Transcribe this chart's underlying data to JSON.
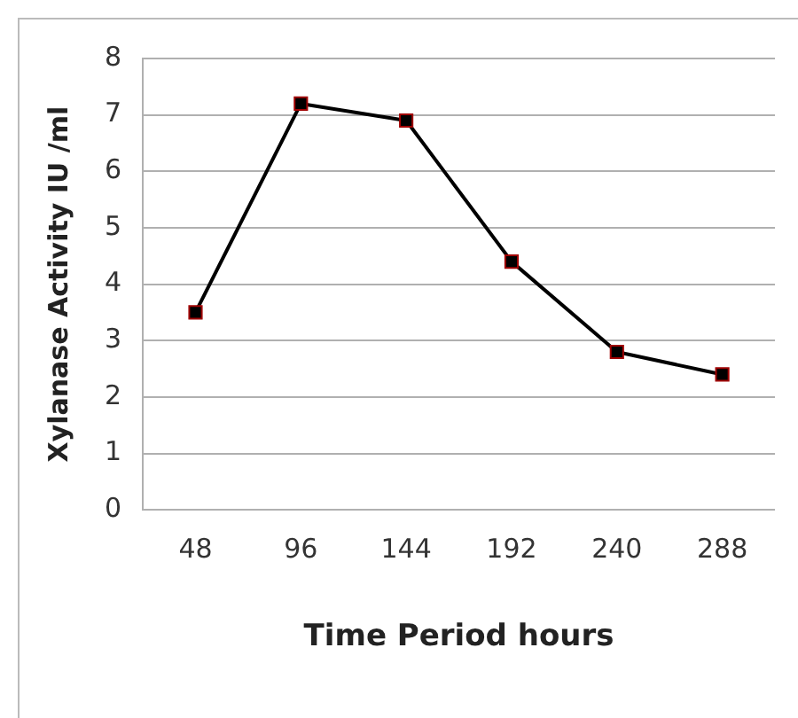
{
  "chart_data": {
    "type": "line",
    "xlabel": "Time Period hours",
    "ylabel": "Xylanase Activity IU /ml",
    "categories": [
      "48",
      "96",
      "144",
      "192",
      "240",
      "288"
    ],
    "series": [
      {
        "color": "#000000",
        "values": [
          3.5,
          7.2,
          6.9,
          4.4,
          2.8,
          2.4
        ]
      }
    ],
    "ylim": [
      0,
      8
    ],
    "yticks": [
      0,
      1,
      2,
      3,
      4,
      5,
      6,
      7,
      8
    ],
    "grid": "y",
    "legend": false,
    "marker": "square",
    "line_style": "solid"
  }
}
